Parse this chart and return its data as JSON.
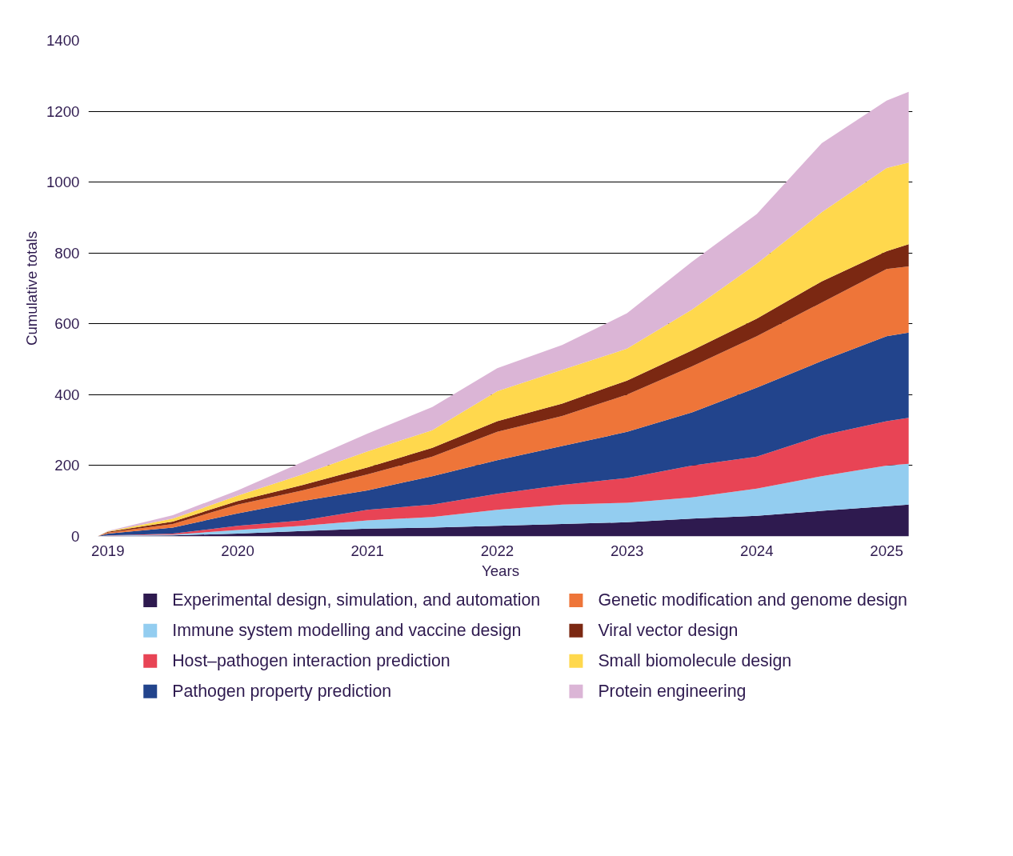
{
  "chart_data": {
    "type": "area",
    "stacked": true,
    "xlabel": "Years",
    "ylabel": "Cumulative totals",
    "x": [
      2018.92,
      2019.0,
      2019.5,
      2020.0,
      2020.5,
      2021.0,
      2021.5,
      2022.0,
      2022.5,
      2023.0,
      2023.5,
      2024.0,
      2024.5,
      2025.0,
      2025.17
    ],
    "xlim": [
      2018.85,
      2025.2
    ],
    "xticks": [
      2019,
      2020,
      2021,
      2022,
      2023,
      2024,
      2025
    ],
    "ylim": [
      0,
      1400
    ],
    "yticks": [
      0,
      200,
      400,
      600,
      800,
      1000,
      1200,
      1400
    ],
    "grid": "y",
    "legend": "bottom",
    "series": [
      {
        "name": "Experimental design, simulation, and automation",
        "color": "#2e1a4f",
        "values": [
          0,
          1,
          3,
          8,
          15,
          22,
          25,
          30,
          35,
          40,
          50,
          58,
          72,
          85,
          90
        ]
      },
      {
        "name": "Immune system modelling and vaccine design",
        "color": "#93cdf0",
        "values": [
          0,
          1,
          2,
          10,
          15,
          23,
          30,
          45,
          55,
          55,
          60,
          77,
          98,
          115,
          115
        ]
      },
      {
        "name": "Host–pathogen interaction prediction",
        "color": "#e84455",
        "values": [
          0,
          1,
          3,
          12,
          15,
          30,
          35,
          45,
          55,
          70,
          90,
          90,
          115,
          125,
          130
        ]
      },
      {
        "name": "Pathogen property prediction",
        "color": "#22448c",
        "values": [
          0,
          5,
          17,
          35,
          55,
          55,
          80,
          95,
          110,
          130,
          150,
          195,
          210,
          240,
          240
        ]
      },
      {
        "name": "Genetic modification and genome design",
        "color": "#ee7539",
        "values": [
          0,
          3,
          10,
          25,
          30,
          45,
          55,
          80,
          85,
          105,
          130,
          145,
          165,
          190,
          187
        ]
      },
      {
        "name": "Viral vector design",
        "color": "#7b2812",
        "values": [
          0,
          2,
          7,
          10,
          15,
          20,
          25,
          30,
          35,
          40,
          45,
          50,
          60,
          50,
          63
        ]
      },
      {
        "name": "Small biomolecule design",
        "color": "#ffd84d",
        "values": [
          0,
          1,
          8,
          15,
          30,
          45,
          50,
          85,
          95,
          90,
          115,
          155,
          195,
          235,
          230
        ]
      },
      {
        "name": "Protein engineering",
        "color": "#dbb5d6",
        "values": [
          0,
          1,
          10,
          15,
          35,
          50,
          65,
          65,
          70,
          100,
          135,
          140,
          195,
          190,
          200
        ]
      }
    ]
  }
}
